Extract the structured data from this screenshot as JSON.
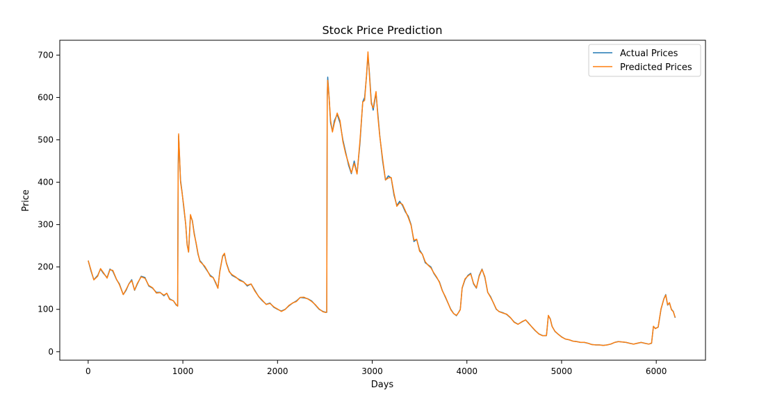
{
  "chart_data": {
    "type": "line",
    "title": "Stock Price Prediction",
    "xlabel": "Days",
    "ylabel": "Price",
    "xlim": [
      -300,
      6520
    ],
    "ylim": [
      -20,
      735
    ],
    "xticks": [
      0,
      1000,
      2000,
      3000,
      4000,
      5000,
      6000
    ],
    "yticks": [
      0,
      100,
      200,
      300,
      400,
      500,
      600,
      700
    ],
    "grid": false,
    "legend_position": "top-right",
    "series": [
      {
        "name": "Actual Prices",
        "color": "#1f77b4",
        "points": [
          [
            0,
            215
          ],
          [
            30,
            190
          ],
          [
            60,
            170
          ],
          [
            100,
            180
          ],
          [
            130,
            195
          ],
          [
            160,
            185
          ],
          [
            200,
            175
          ],
          [
            230,
            195
          ],
          [
            260,
            190
          ],
          [
            300,
            170
          ],
          [
            330,
            160
          ],
          [
            370,
            135
          ],
          [
            400,
            145
          ],
          [
            430,
            160
          ],
          [
            460,
            170
          ],
          [
            490,
            145
          ],
          [
            520,
            160
          ],
          [
            560,
            178
          ],
          [
            600,
            175
          ],
          [
            640,
            155
          ],
          [
            680,
            150
          ],
          [
            720,
            140
          ],
          [
            760,
            140
          ],
          [
            800,
            132
          ],
          [
            830,
            138
          ],
          [
            860,
            125
          ],
          [
            900,
            120
          ],
          [
            930,
            110
          ],
          [
            945,
            108
          ],
          [
            950,
            420
          ],
          [
            955,
            510
          ],
          [
            965,
            460
          ],
          [
            975,
            405
          ],
          [
            990,
            380
          ],
          [
            1010,
            340
          ],
          [
            1030,
            300
          ],
          [
            1045,
            255
          ],
          [
            1060,
            235
          ],
          [
            1080,
            320
          ],
          [
            1100,
            310
          ],
          [
            1120,
            280
          ],
          [
            1140,
            255
          ],
          [
            1160,
            230
          ],
          [
            1180,
            215
          ],
          [
            1200,
            210
          ],
          [
            1230,
            200
          ],
          [
            1260,
            190
          ],
          [
            1290,
            180
          ],
          [
            1320,
            175
          ],
          [
            1350,
            160
          ],
          [
            1370,
            150
          ],
          [
            1390,
            190
          ],
          [
            1420,
            225
          ],
          [
            1440,
            230
          ],
          [
            1460,
            210
          ],
          [
            1490,
            190
          ],
          [
            1520,
            180
          ],
          [
            1560,
            175
          ],
          [
            1600,
            170
          ],
          [
            1640,
            165
          ],
          [
            1680,
            155
          ],
          [
            1720,
            160
          ],
          [
            1760,
            145
          ],
          [
            1800,
            130
          ],
          [
            1840,
            120
          ],
          [
            1880,
            112
          ],
          [
            1920,
            115
          ],
          [
            1960,
            105
          ],
          [
            2000,
            100
          ],
          [
            2040,
            96
          ],
          [
            2080,
            100
          ],
          [
            2120,
            108
          ],
          [
            2160,
            115
          ],
          [
            2200,
            120
          ],
          [
            2240,
            128
          ],
          [
            2280,
            127
          ],
          [
            2320,
            125
          ],
          [
            2360,
            120
          ],
          [
            2400,
            110
          ],
          [
            2440,
            100
          ],
          [
            2480,
            95
          ],
          [
            2510,
            93
          ],
          [
            2520,
            93
          ],
          [
            2525,
            600
          ],
          [
            2530,
            648
          ],
          [
            2545,
            600
          ],
          [
            2560,
            540
          ],
          [
            2580,
            520
          ],
          [
            2600,
            545
          ],
          [
            2630,
            560
          ],
          [
            2660,
            540
          ],
          [
            2690,
            500
          ],
          [
            2720,
            470
          ],
          [
            2750,
            440
          ],
          [
            2780,
            420
          ],
          [
            2810,
            450
          ],
          [
            2840,
            420
          ],
          [
            2870,
            490
          ],
          [
            2900,
            590
          ],
          [
            2920,
            600
          ],
          [
            2940,
            650
          ],
          [
            2955,
            700
          ],
          [
            2970,
            660
          ],
          [
            2990,
            590
          ],
          [
            3010,
            570
          ],
          [
            3040,
            610
          ],
          [
            3060,
            560
          ],
          [
            3080,
            510
          ],
          [
            3110,
            450
          ],
          [
            3140,
            405
          ],
          [
            3170,
            415
          ],
          [
            3200,
            410
          ],
          [
            3230,
            370
          ],
          [
            3260,
            345
          ],
          [
            3290,
            355
          ],
          [
            3320,
            345
          ],
          [
            3350,
            330
          ],
          [
            3380,
            320
          ],
          [
            3410,
            300
          ],
          [
            3440,
            260
          ],
          [
            3470,
            265
          ],
          [
            3500,
            240
          ],
          [
            3530,
            230
          ],
          [
            3560,
            210
          ],
          [
            3590,
            205
          ],
          [
            3620,
            200
          ],
          [
            3650,
            185
          ],
          [
            3680,
            175
          ],
          [
            3710,
            165
          ],
          [
            3740,
            145
          ],
          [
            3770,
            130
          ],
          [
            3800,
            115
          ],
          [
            3830,
            100
          ],
          [
            3860,
            90
          ],
          [
            3890,
            85
          ],
          [
            3910,
            92
          ],
          [
            3930,
            100
          ],
          [
            3950,
            150
          ],
          [
            3980,
            170
          ],
          [
            4010,
            180
          ],
          [
            4040,
            185
          ],
          [
            4070,
            160
          ],
          [
            4100,
            150
          ],
          [
            4130,
            180
          ],
          [
            4160,
            195
          ],
          [
            4190,
            175
          ],
          [
            4220,
            140
          ],
          [
            4250,
            130
          ],
          [
            4280,
            115
          ],
          [
            4310,
            100
          ],
          [
            4340,
            95
          ],
          [
            4380,
            92
          ],
          [
            4420,
            88
          ],
          [
            4460,
            80
          ],
          [
            4500,
            70
          ],
          [
            4540,
            65
          ],
          [
            4580,
            70
          ],
          [
            4620,
            75
          ],
          [
            4650,
            68
          ],
          [
            4680,
            60
          ],
          [
            4720,
            50
          ],
          [
            4760,
            42
          ],
          [
            4800,
            38
          ],
          [
            4840,
            38
          ],
          [
            4860,
            85
          ],
          [
            4880,
            78
          ],
          [
            4900,
            60
          ],
          [
            4930,
            48
          ],
          [
            4960,
            42
          ],
          [
            5000,
            35
          ],
          [
            5040,
            30
          ],
          [
            5080,
            28
          ],
          [
            5120,
            25
          ],
          [
            5160,
            24
          ],
          [
            5200,
            22
          ],
          [
            5240,
            22
          ],
          [
            5280,
            20
          ],
          [
            5320,
            17
          ],
          [
            5360,
            16
          ],
          [
            5400,
            16
          ],
          [
            5440,
            15
          ],
          [
            5480,
            16
          ],
          [
            5520,
            18
          ],
          [
            5560,
            22
          ],
          [
            5600,
            24
          ],
          [
            5640,
            23
          ],
          [
            5680,
            22
          ],
          [
            5720,
            20
          ],
          [
            5760,
            18
          ],
          [
            5800,
            20
          ],
          [
            5840,
            22
          ],
          [
            5880,
            20
          ],
          [
            5920,
            18
          ],
          [
            5950,
            20
          ],
          [
            5970,
            60
          ],
          [
            5990,
            55
          ],
          [
            6020,
            58
          ],
          [
            6050,
            100
          ],
          [
            6080,
            125
          ],
          [
            6100,
            135
          ],
          [
            6120,
            110
          ],
          [
            6140,
            115
          ],
          [
            6160,
            100
          ],
          [
            6180,
            95
          ],
          [
            6200,
            80
          ]
        ]
      },
      {
        "name": "Predicted Prices",
        "color": "#ff7f0e"
      }
    ]
  }
}
